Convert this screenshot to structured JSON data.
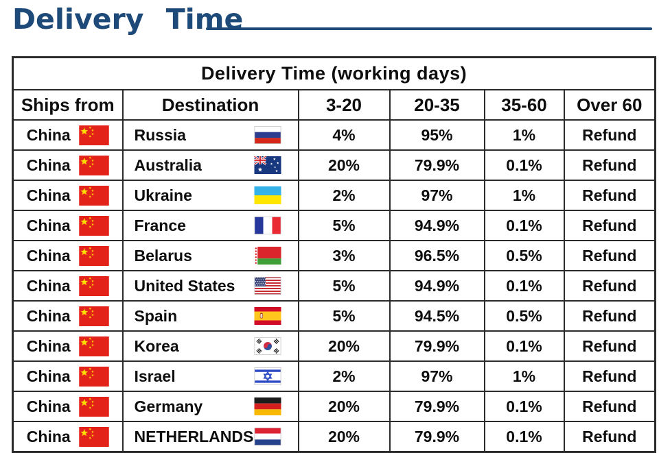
{
  "page_title": "Delivery Time",
  "accent_color": "#1d4a78",
  "table": {
    "title": "Delivery Time (working days)",
    "columns": [
      "Ships from",
      "Destination",
      "3-20",
      "20-35",
      "35-60",
      "Over 60"
    ],
    "rows": [
      {
        "ships_from": "China",
        "ships_from_flag": "china",
        "destination": "Russia",
        "destination_flag": "russia",
        "pct_3_20": "4%",
        "pct_20_35": "95%",
        "pct_35_60": "1%",
        "over_60": "Refund"
      },
      {
        "ships_from": "China",
        "ships_from_flag": "china",
        "destination": "Australia",
        "destination_flag": "australia",
        "pct_3_20": "20%",
        "pct_20_35": "79.9%",
        "pct_35_60": "0.1%",
        "over_60": "Refund"
      },
      {
        "ships_from": "China",
        "ships_from_flag": "china",
        "destination": "Ukraine",
        "destination_flag": "ukraine",
        "pct_3_20": "2%",
        "pct_20_35": "97%",
        "pct_35_60": "1%",
        "over_60": "Refund"
      },
      {
        "ships_from": "China",
        "ships_from_flag": "china",
        "destination": "France",
        "destination_flag": "france",
        "pct_3_20": "5%",
        "pct_20_35": "94.9%",
        "pct_35_60": "0.1%",
        "over_60": "Refund"
      },
      {
        "ships_from": "China",
        "ships_from_flag": "china",
        "destination": "Belarus",
        "destination_flag": "belarus",
        "pct_3_20": "3%",
        "pct_20_35": "96.5%",
        "pct_35_60": "0.5%",
        "over_60": "Refund"
      },
      {
        "ships_from": "China",
        "ships_from_flag": "china",
        "destination": "United States",
        "destination_flag": "united-states",
        "pct_3_20": "5%",
        "pct_20_35": "94.9%",
        "pct_35_60": "0.1%",
        "over_60": "Refund"
      },
      {
        "ships_from": "China",
        "ships_from_flag": "china",
        "destination": "Spain",
        "destination_flag": "spain",
        "pct_3_20": "5%",
        "pct_20_35": "94.5%",
        "pct_35_60": "0.5%",
        "over_60": "Refund"
      },
      {
        "ships_from": "China",
        "ships_from_flag": "china",
        "destination": "Korea",
        "destination_flag": "korea",
        "pct_3_20": "20%",
        "pct_20_35": "79.9%",
        "pct_35_60": "0.1%",
        "over_60": "Refund"
      },
      {
        "ships_from": "China",
        "ships_from_flag": "china",
        "destination": "Israel",
        "destination_flag": "israel",
        "pct_3_20": "2%",
        "pct_20_35": "97%",
        "pct_35_60": "1%",
        "over_60": "Refund"
      },
      {
        "ships_from": "China",
        "ships_from_flag": "china",
        "destination": "Germany",
        "destination_flag": "germany",
        "pct_3_20": "20%",
        "pct_20_35": "79.9%",
        "pct_35_60": "0.1%",
        "over_60": "Refund"
      },
      {
        "ships_from": "China",
        "ships_from_flag": "china",
        "destination": "NETHERLANDS",
        "destination_flag": "netherlands",
        "pct_3_20": "20%",
        "pct_20_35": "79.9%",
        "pct_35_60": "0.1%",
        "over_60": "Refund"
      }
    ]
  }
}
